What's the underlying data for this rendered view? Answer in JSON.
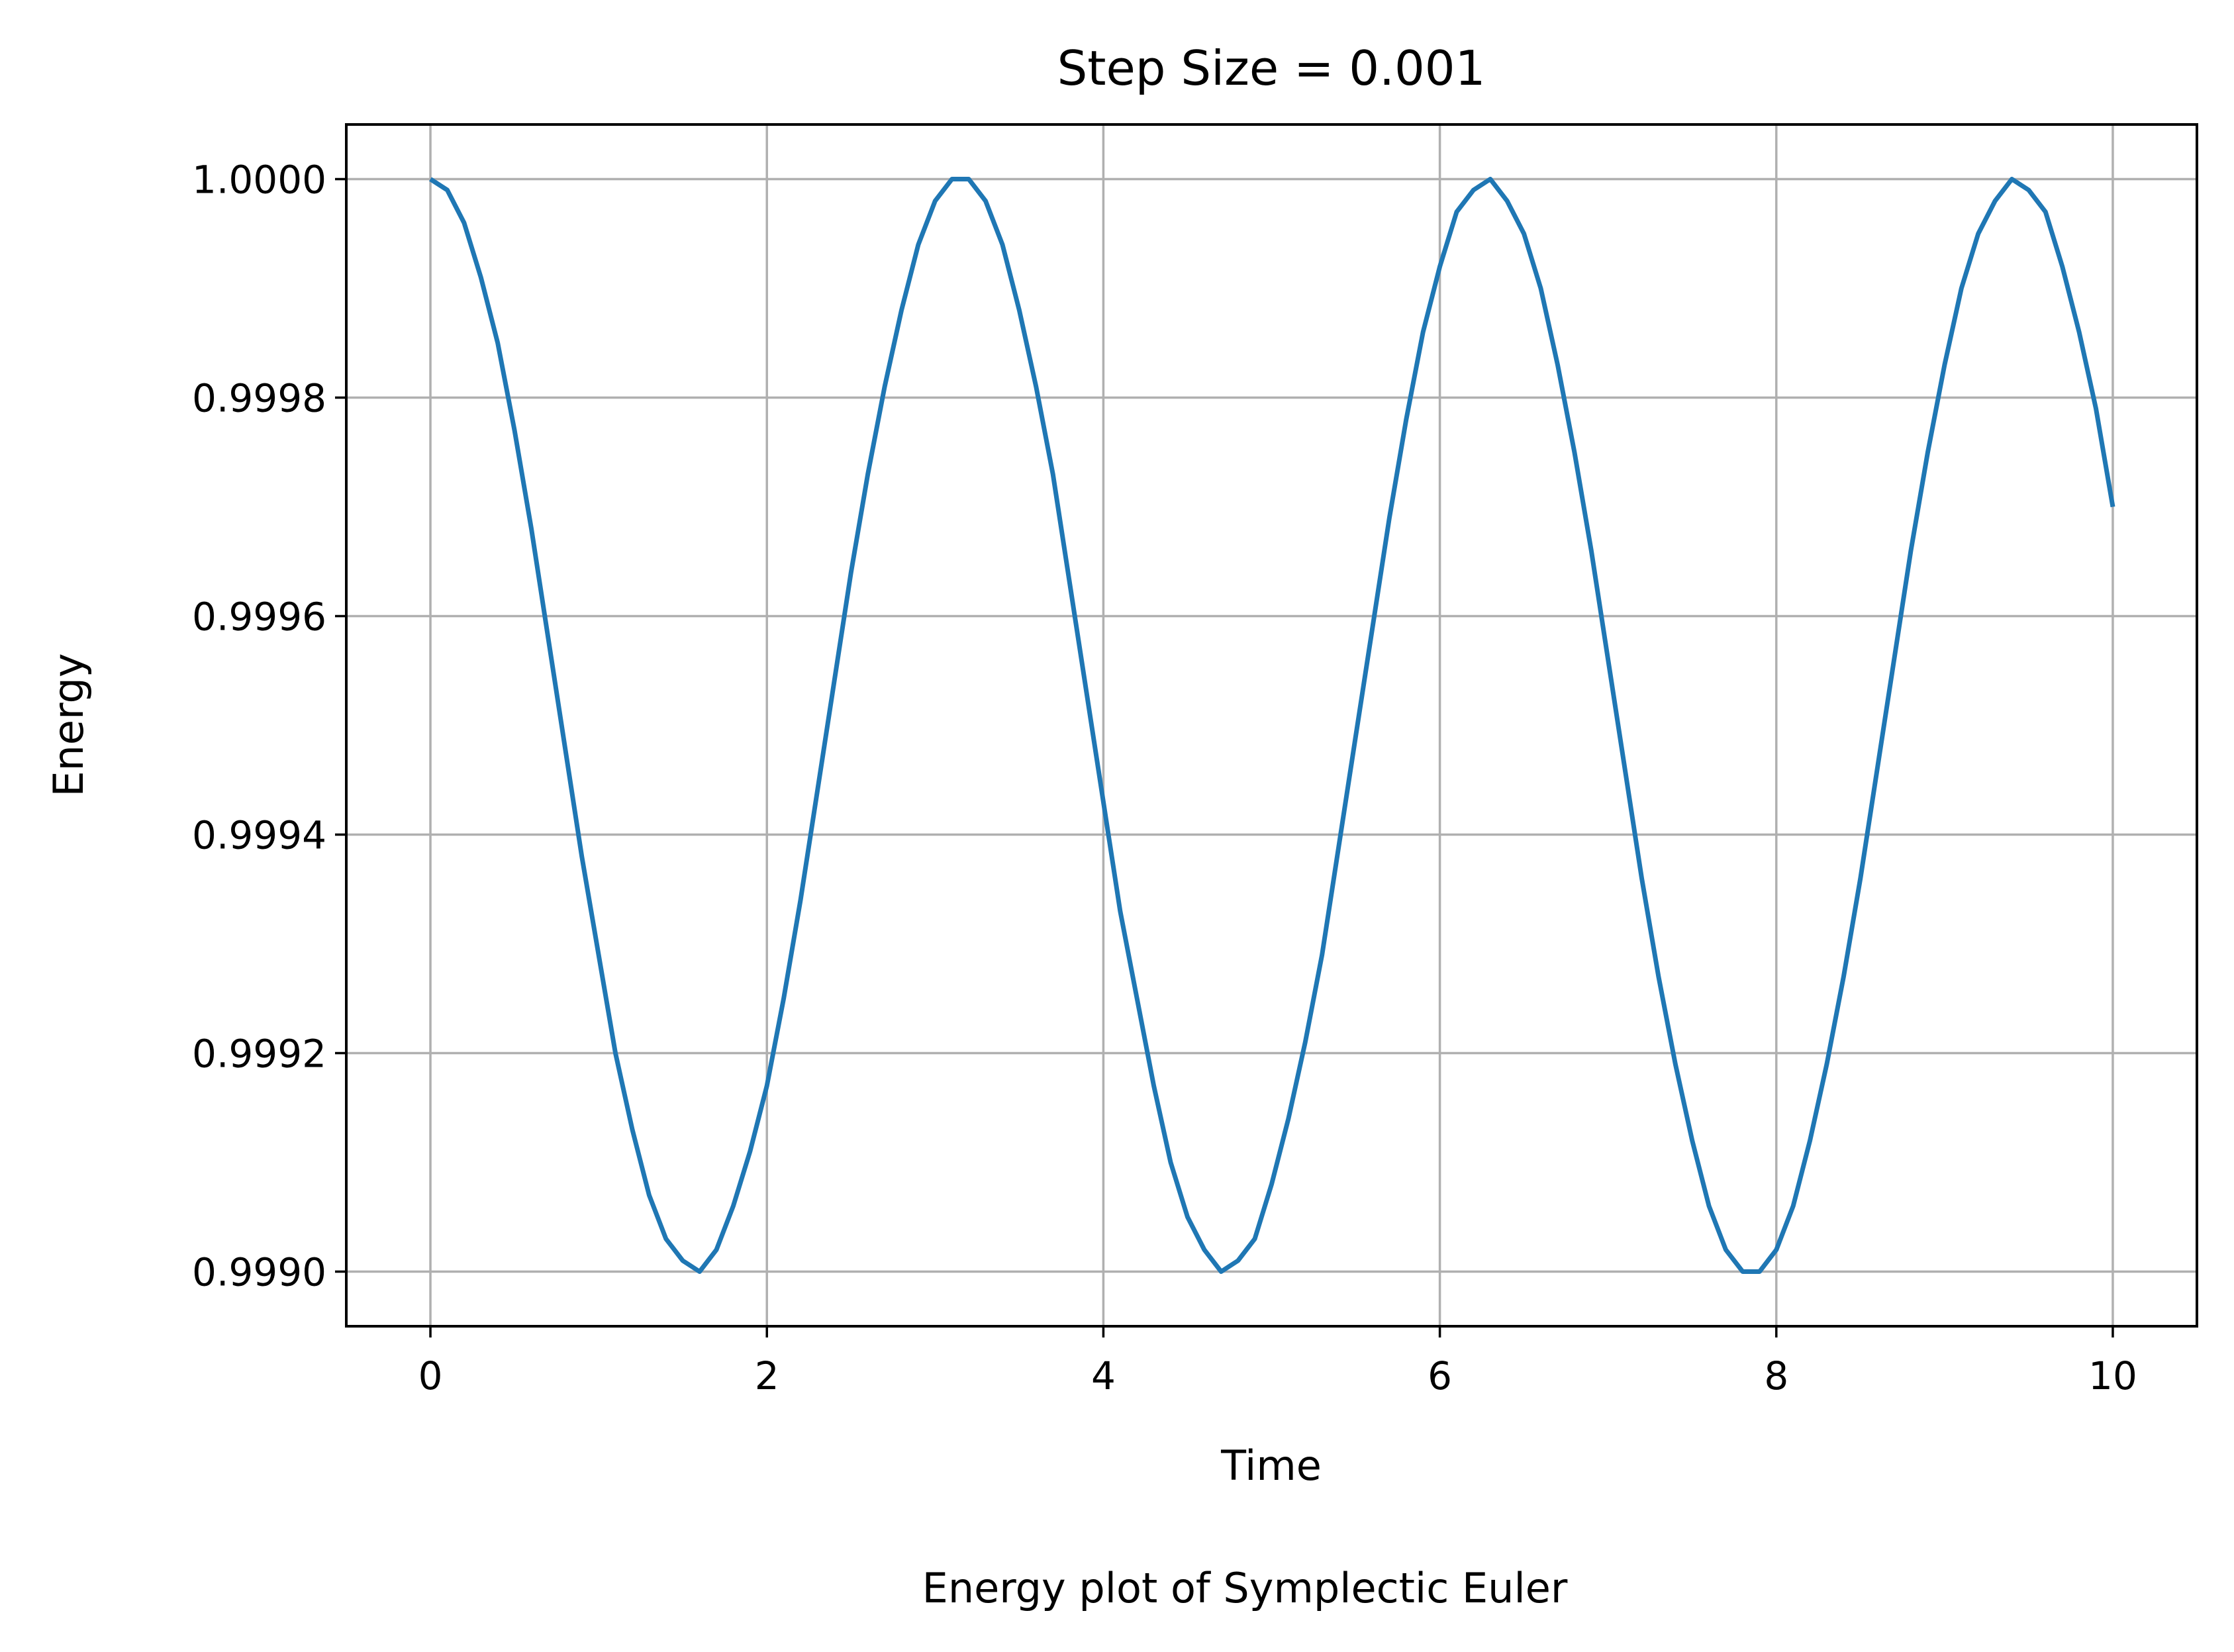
{
  "figure": {
    "title": "Step Size = 0.001",
    "caption": "Energy plot of Symplectic Euler"
  },
  "chart_data": {
    "type": "line",
    "title": "Step Size = 0.001",
    "xlabel": "Time",
    "ylabel": "Energy",
    "xlim": [
      -0.5,
      10.5
    ],
    "ylim": [
      0.99895,
      1.00005
    ],
    "grid": true,
    "x_ticks": [
      0,
      2,
      4,
      6,
      8,
      10
    ],
    "x_tick_labels": [
      "0",
      "2",
      "4",
      "6",
      "8",
      "10"
    ],
    "y_ticks": [
      0.999,
      0.9992,
      0.9994,
      0.9996,
      0.9998,
      1.0
    ],
    "y_tick_labels": [
      "0.9990",
      "0.9992",
      "0.9994",
      "0.9996",
      "0.9998",
      "1.0000"
    ],
    "series": [
      {
        "color": "#1f77b4",
        "x": [
          0,
          0.1,
          0.2,
          0.3,
          0.4,
          0.5,
          0.6,
          0.7,
          0.8,
          0.9,
          1.0,
          1.1,
          1.2,
          1.3,
          1.4,
          1.5,
          1.6,
          1.7,
          1.8,
          1.9,
          2.0,
          2.1,
          2.2,
          2.3,
          2.4,
          2.5,
          2.6,
          2.7,
          2.8,
          2.9,
          3.0,
          3.1,
          3.2,
          3.3,
          3.4,
          3.5,
          3.6,
          3.7,
          3.8,
          3.9,
          4.0,
          4.1,
          4.2,
          4.3,
          4.4,
          4.5,
          4.6,
          4.7,
          4.8,
          4.9,
          5.0,
          5.1,
          5.2,
          5.3,
          5.4,
          5.5,
          5.6,
          5.7,
          5.8,
          5.9,
          6.0,
          6.1,
          6.2,
          6.3,
          6.4,
          6.5,
          6.6,
          6.7,
          6.8,
          6.9,
          7.0,
          7.1,
          7.2,
          7.3,
          7.4,
          7.5,
          7.6,
          7.7,
          7.8,
          7.9,
          8.0,
          8.1,
          8.2,
          8.3,
          8.4,
          8.5,
          8.6,
          8.7,
          8.8,
          8.9,
          9.0,
          9.1,
          9.2,
          9.3,
          9.4,
          9.5,
          9.6,
          9.7,
          9.8,
          9.9,
          10.0
        ],
        "values": [
          1.0,
          0.99999,
          0.99996,
          0.99991,
          0.99985,
          0.99977,
          0.99968,
          0.99958,
          0.99948,
          0.99938,
          0.99929,
          0.9992,
          0.99913,
          0.99907,
          0.99903,
          0.99901,
          0.999,
          0.99902,
          0.99906,
          0.99911,
          0.99917,
          0.99925,
          0.99934,
          0.99944,
          0.99954,
          0.99964,
          0.99973,
          0.99981,
          0.99988,
          0.99994,
          0.99998,
          1.0,
          1.0,
          0.99998,
          0.99994,
          0.99988,
          0.99981,
          0.99973,
          0.99963,
          0.99953,
          0.99943,
          0.99933,
          0.99925,
          0.99917,
          0.9991,
          0.99905,
          0.99902,
          0.999,
          0.99901,
          0.99903,
          0.99908,
          0.99914,
          0.99921,
          0.99929,
          0.99939,
          0.99949,
          0.99959,
          0.99969,
          0.99978,
          0.99986,
          0.99992,
          0.99997,
          0.99999,
          1.0,
          0.99998,
          0.99995,
          0.9999,
          0.99983,
          0.99975,
          0.99966,
          0.99956,
          0.99946,
          0.99936,
          0.99927,
          0.99919,
          0.99912,
          0.99906,
          0.99902,
          0.999,
          0.999,
          0.99902,
          0.99906,
          0.99912,
          0.99919,
          0.99927,
          0.99936,
          0.99946,
          0.99956,
          0.99966,
          0.99975,
          0.99983,
          0.9999,
          0.99995,
          0.99998,
          1.0,
          0.99999,
          0.99997,
          0.99992,
          0.99986,
          0.99979,
          0.9997
        ]
      }
    ]
  }
}
